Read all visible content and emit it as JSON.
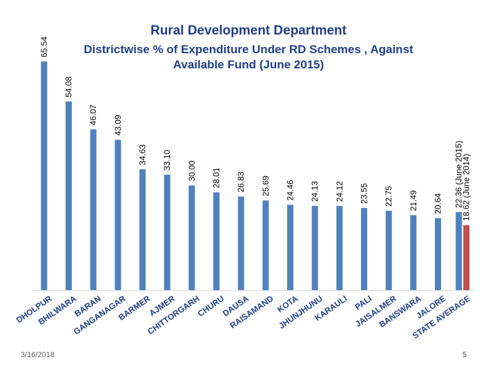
{
  "chart_data": {
    "type": "bar",
    "title": "Rural Development Department",
    "subtitle": "Districtwise % of Expenditure Under RD Schemes , Against Available Fund (June 2015)",
    "xlabel": "",
    "ylabel": "",
    "ylim": [
      0,
      70
    ],
    "grid": false,
    "categories": [
      "DHOLPUR",
      "BHILWARA",
      "BARAN",
      "GANGANAGAR",
      "BARMER",
      "AJMER",
      "CHITTORGARH",
      "CHURU",
      "DAUSA",
      "RAISAMAND",
      "KOTA",
      "JHUNJHUNU",
      "KARAULI",
      "PALI",
      "JAISALMER",
      "BANSWARA",
      "JALORE",
      "STATE AVERAGE"
    ],
    "series": [
      {
        "name": "June 2015",
        "color": "#4f81bd",
        "values": [
          65.54,
          54.08,
          46.07,
          43.09,
          34.63,
          33.1,
          30.0,
          28.01,
          26.83,
          25.69,
          24.46,
          24.13,
          24.12,
          23.55,
          22.75,
          21.49,
          20.64,
          22.36
        ],
        "labels": [
          "65.54",
          "54.08",
          "46.07",
          "43.09",
          "34.63",
          "33.10",
          "30.00",
          "28.01",
          "26.83",
          "25.69",
          "24.46",
          "24.13",
          "24.12",
          "23.55",
          "22.75",
          "21.49",
          "20.64",
          "22.36 (June 2015)"
        ]
      },
      {
        "name": "June 2014",
        "color": "#c0504d",
        "values": [
          null,
          null,
          null,
          null,
          null,
          null,
          null,
          null,
          null,
          null,
          null,
          null,
          null,
          null,
          null,
          null,
          null,
          18.62
        ],
        "labels": [
          null,
          null,
          null,
          null,
          null,
          null,
          null,
          null,
          null,
          null,
          null,
          null,
          null,
          null,
          null,
          null,
          null,
          "18.62 (June 2014)"
        ]
      }
    ]
  },
  "footer": {
    "date": "3/16/2018",
    "page": "5"
  }
}
